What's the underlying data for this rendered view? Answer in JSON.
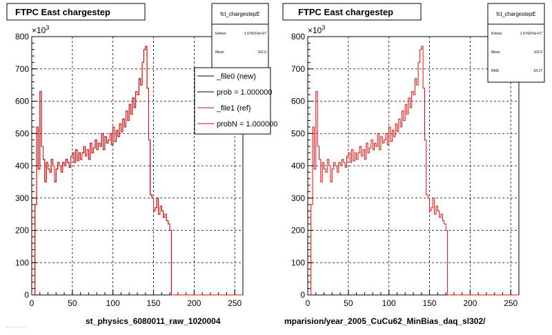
{
  "chart_data": [
    {
      "type": "line",
      "title": "FTPC East chargestep",
      "xlabel": "st_physics_6080011_raw_1020004",
      "ylabel": "",
      "y_exponent": "×10",
      "y_exponent_power": "3",
      "xlim": [
        0,
        260
      ],
      "ylim": [
        0,
        800
      ],
      "x_ticks": [
        "0",
        "50",
        "100",
        "150",
        "200",
        "250"
      ],
      "y_ticks": [
        "0",
        "100",
        "200",
        "300",
        "400",
        "500",
        "600",
        "700",
        "800"
      ],
      "grid": true,
      "legend_position": "top-right",
      "stats": {
        "name": "fcl_chargestepE",
        "entries_label": "Entries",
        "entries_value": "1.074216e+07",
        "mean_label": "Mean",
        "mean_value": "102.6"
      },
      "legend": [
        "_file0 (new)",
        "prob = 1.000000",
        "_file1 (ref)",
        "probN = 1.000000"
      ],
      "series": [
        {
          "name": "_file0 (new)",
          "color": "#000000",
          "x": [
            0,
            2,
            4,
            6,
            8,
            10,
            12,
            14,
            16,
            18,
            20,
            22,
            24,
            26,
            28,
            30,
            32,
            34,
            36,
            38,
            40,
            42,
            44,
            46,
            48,
            50,
            52,
            54,
            56,
            58,
            60,
            62,
            64,
            66,
            68,
            70,
            72,
            74,
            76,
            78,
            80,
            82,
            84,
            86,
            88,
            90,
            92,
            94,
            96,
            98,
            100,
            102,
            104,
            106,
            108,
            110,
            112,
            114,
            116,
            118,
            120,
            122,
            124,
            126,
            128,
            130,
            132,
            134,
            136,
            138,
            140,
            142,
            144,
            146,
            148,
            150,
            152,
            154,
            156,
            158,
            160,
            162,
            164,
            166,
            168,
            170,
            172,
            174,
            176,
            178,
            180,
            182,
            184,
            186,
            188,
            190,
            192,
            194,
            196,
            198,
            200,
            202,
            260
          ],
          "values": [
            0,
            0,
            280,
            520,
            390,
            630,
            460,
            420,
            350,
            410,
            390,
            380,
            420,
            400,
            350,
            390,
            410,
            400,
            380,
            410,
            400,
            420,
            410,
            395,
            430,
            440,
            410,
            450,
            415,
            440,
            420,
            440,
            460,
            430,
            450,
            420,
            470,
            440,
            455,
            480,
            450,
            470,
            460,
            500,
            450,
            490,
            470,
            480,
            500,
            465,
            520,
            475,
            510,
            490,
            530,
            505,
            545,
            520,
            570,
            540,
            590,
            560,
            610,
            580,
            630,
            620,
            670,
            650,
            720,
            760,
            770,
            640,
            480,
            310,
            300,
            260,
            270,
            300,
            250,
            275,
            260,
            240,
            250,
            230,
            220,
            200,
            0,
            0,
            0,
            0,
            0,
            0,
            0,
            0,
            0,
            0,
            0,
            0,
            0,
            0,
            0,
            0,
            0
          ]
        },
        {
          "name": "_file1 (ref)",
          "color": "#ff0000",
          "x": [
            0,
            2,
            4,
            6,
            8,
            10,
            12,
            14,
            16,
            18,
            20,
            22,
            24,
            26,
            28,
            30,
            32,
            34,
            36,
            38,
            40,
            42,
            44,
            46,
            48,
            50,
            52,
            54,
            56,
            58,
            60,
            62,
            64,
            66,
            68,
            70,
            72,
            74,
            76,
            78,
            80,
            82,
            84,
            86,
            88,
            90,
            92,
            94,
            96,
            98,
            100,
            102,
            104,
            106,
            108,
            110,
            112,
            114,
            116,
            118,
            120,
            122,
            124,
            126,
            128,
            130,
            132,
            134,
            136,
            138,
            140,
            142,
            144,
            146,
            148,
            150,
            152,
            154,
            156,
            158,
            160,
            162,
            164,
            166,
            168,
            170,
            172,
            174,
            176,
            178,
            180,
            182,
            184,
            186,
            188,
            190,
            192,
            194,
            196,
            198,
            200,
            202,
            260
          ],
          "values": [
            0,
            0,
            280,
            520,
            390,
            630,
            460,
            420,
            350,
            410,
            390,
            380,
            420,
            400,
            350,
            390,
            410,
            400,
            380,
            410,
            400,
            420,
            410,
            395,
            430,
            440,
            410,
            450,
            415,
            440,
            420,
            440,
            460,
            430,
            450,
            420,
            470,
            440,
            455,
            480,
            450,
            470,
            460,
            500,
            450,
            490,
            470,
            480,
            500,
            465,
            520,
            475,
            510,
            490,
            530,
            505,
            545,
            520,
            570,
            540,
            590,
            560,
            610,
            580,
            630,
            620,
            670,
            650,
            720,
            760,
            770,
            640,
            480,
            310,
            300,
            260,
            270,
            300,
            250,
            275,
            260,
            240,
            250,
            230,
            220,
            200,
            0,
            0,
            0,
            0,
            0,
            0,
            0,
            0,
            0,
            0,
            0,
            0,
            0,
            0,
            0,
            0,
            0
          ]
        }
      ]
    },
    {
      "type": "line",
      "title": "FTPC East chargestep",
      "xlabel": "mparision/year_2005_CuCu62_MinBias_daq_sl302/",
      "ylabel": "",
      "y_exponent": "×10",
      "y_exponent_power": "3",
      "xlim": [
        0,
        260
      ],
      "ylim": [
        0,
        800
      ],
      "x_ticks": [
        "0",
        "50",
        "100",
        "150",
        "200",
        "250"
      ],
      "y_ticks": [
        "0",
        "100",
        "200",
        "300",
        "400",
        "500",
        "600",
        "700",
        "800"
      ],
      "grid": true,
      "stats": {
        "name": "fcl_chargestepE",
        "entries_label": "Entries",
        "entries_value": "1.074216e+07",
        "mean_label": "Mean",
        "mean_value": "102.6",
        "rms_label": "RMS",
        "rms_value": "54.27"
      },
      "series": [
        {
          "color": "#ff0000",
          "x": [
            0,
            2,
            4,
            6,
            8,
            10,
            12,
            14,
            16,
            18,
            20,
            22,
            24,
            26,
            28,
            30,
            32,
            34,
            36,
            38,
            40,
            42,
            44,
            46,
            48,
            50,
            52,
            54,
            56,
            58,
            60,
            62,
            64,
            66,
            68,
            70,
            72,
            74,
            76,
            78,
            80,
            82,
            84,
            86,
            88,
            90,
            92,
            94,
            96,
            98,
            100,
            102,
            104,
            106,
            108,
            110,
            112,
            114,
            116,
            118,
            120,
            122,
            124,
            126,
            128,
            130,
            132,
            134,
            136,
            138,
            140,
            142,
            144,
            146,
            148,
            150,
            152,
            154,
            156,
            158,
            160,
            162,
            164,
            166,
            168,
            170,
            172,
            174,
            176,
            178,
            180,
            182,
            184,
            186,
            188,
            190,
            192,
            194,
            196,
            198,
            200,
            202,
            260
          ],
          "values": [
            0,
            0,
            280,
            520,
            390,
            630,
            460,
            420,
            350,
            410,
            390,
            380,
            420,
            400,
            350,
            390,
            410,
            400,
            380,
            410,
            400,
            420,
            410,
            395,
            430,
            440,
            410,
            450,
            415,
            440,
            420,
            440,
            460,
            430,
            450,
            420,
            470,
            440,
            455,
            480,
            450,
            470,
            460,
            500,
            450,
            490,
            470,
            480,
            500,
            465,
            520,
            475,
            510,
            490,
            530,
            505,
            545,
            520,
            570,
            540,
            590,
            560,
            610,
            580,
            630,
            620,
            670,
            650,
            720,
            760,
            770,
            640,
            480,
            310,
            300,
            260,
            270,
            300,
            250,
            275,
            260,
            240,
            250,
            230,
            220,
            200,
            0,
            0,
            0,
            0,
            0,
            0,
            0,
            0,
            0,
            0,
            0,
            0,
            0,
            0,
            0,
            0,
            0
          ]
        }
      ]
    }
  ],
  "footer_text": "....... .. .....-"
}
